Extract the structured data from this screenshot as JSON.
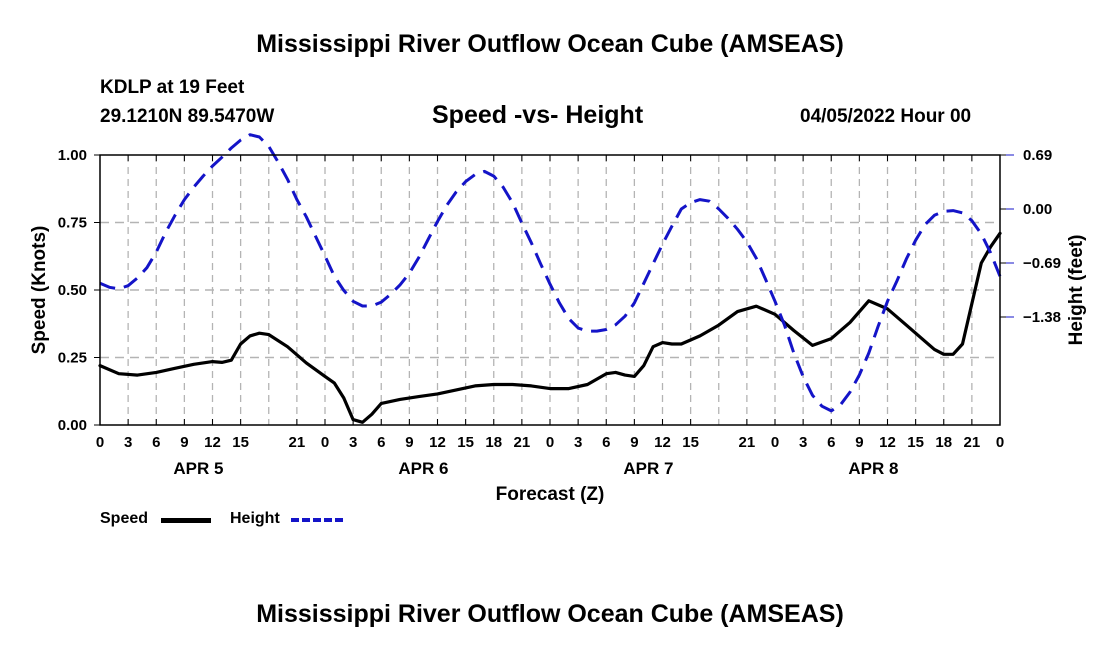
{
  "header": {
    "title": "Mississippi River Outflow Ocean Cube (AMSEAS)",
    "station": "KDLP at 19 Feet",
    "coords": "29.1210N  89.5470W",
    "subtitle": "Speed -vs- Height",
    "date": "04/05/2022 Hour 00"
  },
  "footer": {
    "title": "Mississippi River Outflow Ocean Cube (AMSEAS)"
  },
  "legend": {
    "speed_label": "Speed",
    "height_label": "Height"
  },
  "chart_data": {
    "type": "line",
    "xlabel": "Forecast (Z)",
    "ylabel_left": "Speed (Knots)",
    "ylabel_right": "Height (feet)",
    "x_range_hours": [
      0,
      96
    ],
    "x_tick_step_hours": 3,
    "x_tick_labels": [
      "0",
      "3",
      "6",
      "9",
      "12",
      "15",
      "21",
      "0",
      "3",
      "6",
      "9",
      "12",
      "15",
      "18",
      "21",
      "0",
      "3",
      "6",
      "9",
      "12",
      "15",
      "21",
      "0",
      "3",
      "6",
      "9",
      "12",
      "15",
      "18",
      "21",
      "0"
    ],
    "x_tick_hours": [
      0,
      3,
      6,
      9,
      12,
      15,
      21,
      24,
      27,
      30,
      33,
      36,
      39,
      42,
      45,
      48,
      51,
      54,
      57,
      60,
      63,
      69,
      72,
      75,
      78,
      81,
      84,
      87,
      90,
      93,
      96
    ],
    "day_labels": [
      {
        "label": "APR 5",
        "hour": 10.5
      },
      {
        "label": "APR 6",
        "hour": 34.5
      },
      {
        "label": "APR 7",
        "hour": 58.5
      },
      {
        "label": "APR 8",
        "hour": 82.5
      }
    ],
    "left_axis": {
      "range": [
        0,
        1.0
      ],
      "ticks": [
        0,
        0.25,
        0.5,
        0.75,
        1.0
      ],
      "tick_labels": [
        "0.00",
        "0.25",
        "0.50",
        "0.75",
        "1.00"
      ]
    },
    "right_axis": {
      "range": [
        -2.76,
        0.69
      ],
      "ticks": [
        0.69,
        0.0,
        -0.69,
        -1.38
      ],
      "tick_labels": [
        "0.69",
        "0.00",
        "−0.69",
        "−1.38"
      ]
    },
    "grid": true,
    "series": [
      {
        "name": "Speed",
        "axis": "left",
        "color": "#000000",
        "style": "solid",
        "x": [
          0,
          2,
          4,
          6,
          8,
          10,
          12,
          13,
          14,
          15,
          16,
          17,
          18,
          20,
          22,
          24,
          25,
          26,
          27,
          28,
          29,
          30,
          32,
          34,
          36,
          38,
          40,
          42,
          44,
          46,
          48,
          50,
          52,
          54,
          55,
          56,
          57,
          58,
          59,
          60,
          61,
          62,
          64,
          66,
          68,
          70,
          72,
          74,
          76,
          78,
          80,
          82,
          84,
          86,
          88,
          89,
          90,
          91,
          92,
          93,
          94,
          95,
          96
        ],
        "values": [
          0.22,
          0.19,
          0.185,
          0.195,
          0.21,
          0.225,
          0.235,
          0.232,
          0.24,
          0.3,
          0.33,
          0.34,
          0.335,
          0.29,
          0.23,
          0.18,
          0.155,
          0.1,
          0.02,
          0.01,
          0.04,
          0.08,
          0.095,
          0.105,
          0.115,
          0.13,
          0.145,
          0.15,
          0.15,
          0.145,
          0.135,
          0.135,
          0.15,
          0.19,
          0.195,
          0.185,
          0.18,
          0.22,
          0.29,
          0.305,
          0.3,
          0.3,
          0.33,
          0.37,
          0.42,
          0.44,
          0.41,
          0.35,
          0.295,
          0.32,
          0.38,
          0.46,
          0.43,
          0.37,
          0.31,
          0.28,
          0.262,
          0.262,
          0.3,
          0.45,
          0.6,
          0.66,
          0.71
        ]
      },
      {
        "name": "Height",
        "axis": "right",
        "color": "#1414c8",
        "style": "dashed",
        "x": [
          0,
          1,
          2,
          3,
          4,
          5,
          6,
          7,
          8,
          9,
          10,
          11,
          12,
          13,
          14,
          15,
          16,
          17,
          18,
          19,
          20,
          21,
          22,
          23,
          24,
          25,
          26,
          27,
          28,
          29,
          30,
          31,
          32,
          33,
          34,
          35,
          36,
          37,
          38,
          39,
          40,
          41,
          42,
          43,
          44,
          45,
          46,
          47,
          48,
          49,
          50,
          51,
          52,
          53,
          54,
          55,
          56,
          57,
          58,
          59,
          60,
          61,
          62,
          63,
          64,
          65,
          66,
          67,
          68,
          69,
          70,
          71,
          72,
          73,
          74,
          75,
          76,
          77,
          78,
          79,
          80,
          81,
          82,
          83,
          84,
          85,
          86,
          87,
          88,
          89,
          90,
          91,
          92,
          93,
          94,
          95,
          96
        ],
        "values": [
          -0.95,
          -1.0,
          -1.02,
          -0.98,
          -0.88,
          -0.75,
          -0.55,
          -0.3,
          -0.08,
          0.12,
          0.28,
          0.42,
          0.55,
          0.66,
          0.78,
          0.88,
          0.95,
          0.92,
          0.8,
          0.6,
          0.38,
          0.12,
          -0.1,
          -0.35,
          -0.6,
          -0.86,
          -1.04,
          -1.18,
          -1.24,
          -1.24,
          -1.19,
          -1.09,
          -0.97,
          -0.82,
          -0.62,
          -0.39,
          -0.16,
          0.05,
          0.22,
          0.35,
          0.44,
          0.48,
          0.42,
          0.28,
          0.08,
          -0.18,
          -0.43,
          -0.7,
          -0.96,
          -1.2,
          -1.4,
          -1.52,
          -1.56,
          -1.56,
          -1.54,
          -1.48,
          -1.37,
          -1.2,
          -0.95,
          -0.7,
          -0.45,
          -0.22,
          0.0,
          0.08,
          0.12,
          0.1,
          0.0,
          -0.12,
          -0.26,
          -0.42,
          -0.63,
          -0.9,
          -1.18,
          -1.48,
          -1.84,
          -2.14,
          -2.38,
          -2.52,
          -2.58,
          -2.5,
          -2.34,
          -2.12,
          -1.84,
          -1.5,
          -1.18,
          -0.92,
          -0.64,
          -0.4,
          -0.2,
          -0.08,
          -0.03,
          -0.02,
          -0.05,
          -0.15,
          -0.32,
          -0.56,
          -0.86
        ]
      }
    ]
  }
}
